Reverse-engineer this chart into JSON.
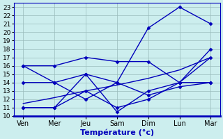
{
  "days": [
    "Ven",
    "Mer",
    "Jeu",
    "Sam",
    "Dim",
    "Lun",
    "Mar"
  ],
  "x_positions": [
    0,
    1,
    2,
    3,
    4,
    5,
    6
  ],
  "line1": [
    16,
    16,
    17,
    16.5,
    16.5,
    14,
    14
  ],
  "line2": [
    11,
    11,
    15,
    10.5,
    13,
    14,
    17
  ],
  "line3": [
    14,
    14,
    12,
    14,
    12.5,
    13.5,
    14
  ],
  "line4": [
    16,
    14,
    15,
    14,
    20.5,
    23,
    21
  ],
  "line5": [
    11,
    11,
    13,
    11,
    12,
    14,
    18
  ],
  "trend": [
    11.5,
    12.2,
    13.0,
    13.7,
    14.5,
    15.5,
    17.0
  ],
  "line_color": "#0000bb",
  "background_color": "#cceeee",
  "grid_color": "#99bbbb",
  "xlabel": "Température (°c)",
  "ylim": [
    10,
    23.5
  ],
  "yticks": [
    10,
    11,
    12,
    13,
    14,
    15,
    16,
    17,
    18,
    19,
    20,
    21,
    22,
    23
  ],
  "axis_fontsize": 7,
  "tick_fontsize": 6.5,
  "xlabel_fontsize": 8
}
